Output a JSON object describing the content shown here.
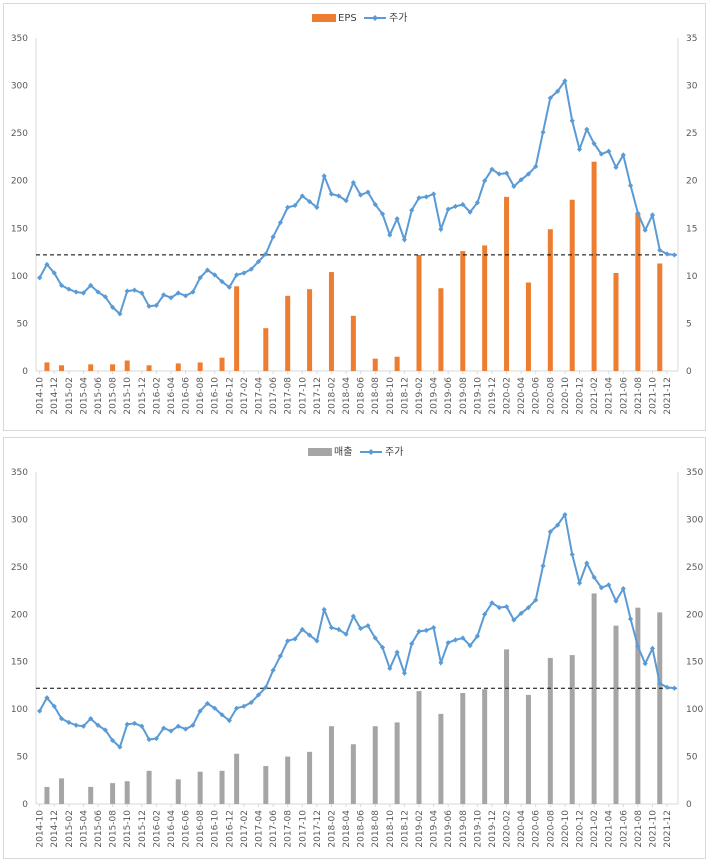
{
  "chart_data": [
    {
      "type": "bar+line",
      "x": [
        "2014-10",
        "2014-11",
        "2014-12",
        "2015-01",
        "2015-02",
        "2015-03",
        "2015-04",
        "2015-05",
        "2015-06",
        "2015-07",
        "2015-08",
        "2015-09",
        "2015-10",
        "2015-11",
        "2015-12",
        "2016-01",
        "2016-02",
        "2016-03",
        "2016-04",
        "2016-05",
        "2016-06",
        "2016-07",
        "2016-08",
        "2016-09",
        "2016-10",
        "2016-11",
        "2016-12",
        "2017-01",
        "2017-02",
        "2017-03",
        "2017-04",
        "2017-05",
        "2017-06",
        "2017-07",
        "2017-08",
        "2017-09",
        "2017-10",
        "2017-11",
        "2017-12",
        "2018-01",
        "2018-02",
        "2018-03",
        "2018-04",
        "2018-05",
        "2018-06",
        "2018-07",
        "2018-08",
        "2018-09",
        "2018-10",
        "2018-11",
        "2018-12",
        "2019-01",
        "2019-02",
        "2019-03",
        "2019-04",
        "2019-05",
        "2019-06",
        "2019-07",
        "2019-08",
        "2019-09",
        "2019-10",
        "2019-11",
        "2019-12",
        "2020-01",
        "2020-02",
        "2020-03",
        "2020-04",
        "2020-05",
        "2020-06",
        "2020-07",
        "2020-08",
        "2020-09",
        "2020-10",
        "2020-11",
        "2020-12",
        "2021-01",
        "2021-02",
        "2021-03",
        "2021-04",
        "2021-05",
        "2021-06",
        "2021-07",
        "2021-08",
        "2021-09",
        "2021-10",
        "2021-11",
        "2021-12",
        "2022-01"
      ],
      "x_tick_labels": [
        "2014-10",
        "2014-12",
        "2015-02",
        "2015-04",
        "2015-06",
        "2015-08",
        "2015-10",
        "2015-12",
        "2016-02",
        "2016-04",
        "2016-06",
        "2016-08",
        "2016-10",
        "2016-12",
        "2017-02",
        "2017-04",
        "2017-06",
        "2017-08",
        "2017-10",
        "2017-12",
        "2018-02",
        "2018-04",
        "2018-06",
        "2018-08",
        "2018-10",
        "2018-12",
        "2019-02",
        "2019-04",
        "2019-06",
        "2019-08",
        "2019-10",
        "2019-12",
        "2020-02",
        "2020-04",
        "2020-06",
        "2020-08",
        "2020-10",
        "2020-12",
        "2021-02",
        "2021-04",
        "2021-06",
        "2021-08",
        "2021-10",
        "2021-12"
      ],
      "left_axis": {
        "min": 0,
        "max": 350,
        "ticks": [
          "0",
          "50",
          "100",
          "150",
          "200",
          "250",
          "300",
          "350"
        ]
      },
      "right_axis": {
        "min": 0,
        "max": 35,
        "ticks": [
          "0",
          "5",
          "10",
          "15",
          "20",
          "25",
          "30",
          "35"
        ]
      },
      "reference_line": 122,
      "legend": {
        "position": "top",
        "bar_label": "EPS",
        "line_label": "주가"
      },
      "colors": {
        "bar": "#ED7D31",
        "line": "#5B9BD5",
        "grid_axis": "#d9d9d9",
        "reference": "#000000"
      },
      "bars": {
        "name": "EPS",
        "axis": "right",
        "points": [
          [
            "2014-11",
            0.9
          ],
          [
            "2015-01",
            0.6
          ],
          [
            "2015-05",
            0.7
          ],
          [
            "2015-08",
            0.7
          ],
          [
            "2015-10",
            1.1
          ],
          [
            "2016-01",
            0.6
          ],
          [
            "2016-05",
            0.8
          ],
          [
            "2016-08",
            0.9
          ],
          [
            "2016-11",
            1.4
          ],
          [
            "2017-01",
            8.9
          ],
          [
            "2017-05",
            4.5
          ],
          [
            "2017-08",
            7.9
          ],
          [
            "2017-11",
            8.6
          ],
          [
            "2018-02",
            10.4
          ],
          [
            "2018-05",
            5.8
          ],
          [
            "2018-08",
            1.3
          ],
          [
            "2018-11",
            1.5
          ],
          [
            "2019-02",
            12.2
          ],
          [
            "2019-05",
            8.7
          ],
          [
            "2019-08",
            12.6
          ],
          [
            "2019-11",
            13.2
          ],
          [
            "2020-02",
            18.3
          ],
          [
            "2020-05",
            9.3
          ],
          [
            "2020-08",
            14.9
          ],
          [
            "2020-11",
            18.0
          ],
          [
            "2021-02",
            22.0
          ],
          [
            "2021-05",
            10.3
          ],
          [
            "2021-08",
            16.6
          ],
          [
            "2021-11",
            11.3
          ]
        ]
      },
      "line": {
        "name": "주가",
        "axis": "left",
        "values": [
          98,
          112,
          103,
          90,
          86,
          83,
          82,
          90,
          83,
          78,
          67,
          60,
          84,
          85,
          82,
          68,
          69,
          80,
          77,
          82,
          79,
          83,
          98,
          106,
          101,
          94,
          88,
          101,
          103,
          107,
          115,
          123,
          141,
          156,
          172,
          174,
          184,
          178,
          172,
          205,
          186,
          184,
          179,
          198,
          185,
          188,
          175,
          165,
          143,
          160,
          138,
          169,
          182,
          183,
          186,
          149,
          170,
          173,
          175,
          167,
          177,
          200,
          212,
          207,
          208,
          194,
          201,
          207,
          215,
          251,
          287,
          294,
          305,
          263,
          233,
          254,
          239,
          228,
          231,
          214,
          227,
          195,
          166,
          148,
          164,
          127,
          123,
          122
        ]
      }
    },
    {
      "type": "bar+line",
      "x_tick_labels": [
        "2014-10",
        "2014-12",
        "2015-02",
        "2015-04",
        "2015-06",
        "2015-08",
        "2015-10",
        "2015-12",
        "2016-02",
        "2016-04",
        "2016-06",
        "2016-08",
        "2016-10",
        "2016-12",
        "2017-02",
        "2017-04",
        "2017-06",
        "2017-08",
        "2017-10",
        "2017-12",
        "2018-02",
        "2018-04",
        "2018-06",
        "2018-08",
        "2018-10",
        "2018-12",
        "2019-02",
        "2019-04",
        "2019-06",
        "2019-08",
        "2019-10",
        "2019-12",
        "2020-02",
        "2020-04",
        "2020-06",
        "2020-08",
        "2020-10",
        "2020-12",
        "2021-02",
        "2021-04",
        "2021-06",
        "2021-08",
        "2021-10",
        "2021-12"
      ],
      "left_axis": {
        "min": 0,
        "max": 350,
        "ticks": [
          "0",
          "50",
          "100",
          "150",
          "200",
          "250",
          "300",
          "350"
        ]
      },
      "right_axis": {
        "min": 0,
        "max": 350,
        "ticks": [
          "0",
          "50",
          "100",
          "150",
          "200",
          "250",
          "300",
          "350"
        ]
      },
      "reference_line": 122,
      "legend": {
        "position": "top",
        "bar_label": "매출",
        "line_label": "주가"
      },
      "colors": {
        "bar": "#A5A5A5",
        "line": "#5B9BD5",
        "grid_axis": "#d9d9d9",
        "reference": "#000000"
      },
      "bars": {
        "name": "매출",
        "axis": "right",
        "points": [
          [
            "2014-11",
            18
          ],
          [
            "2015-01",
            27
          ],
          [
            "2015-05",
            18
          ],
          [
            "2015-08",
            22
          ],
          [
            "2015-10",
            24
          ],
          [
            "2016-01",
            35
          ],
          [
            "2016-05",
            26
          ],
          [
            "2016-08",
            34
          ],
          [
            "2016-11",
            35
          ],
          [
            "2017-01",
            53
          ],
          [
            "2017-05",
            40
          ],
          [
            "2017-08",
            50
          ],
          [
            "2017-11",
            55
          ],
          [
            "2018-02",
            82
          ],
          [
            "2018-05",
            63
          ],
          [
            "2018-08",
            82
          ],
          [
            "2018-11",
            86
          ],
          [
            "2019-02",
            119
          ],
          [
            "2019-05",
            95
          ],
          [
            "2019-08",
            117
          ],
          [
            "2019-11",
            121
          ],
          [
            "2020-02",
            163
          ],
          [
            "2020-05",
            115
          ],
          [
            "2020-08",
            154
          ],
          [
            "2020-11",
            157
          ],
          [
            "2021-02",
            222
          ],
          [
            "2021-05",
            188
          ],
          [
            "2021-08",
            207
          ],
          [
            "2021-11",
            202
          ]
        ]
      },
      "line": {
        "name": "주가",
        "axis": "left",
        "values": [
          98,
          112,
          103,
          90,
          86,
          83,
          82,
          90,
          83,
          78,
          67,
          60,
          84,
          85,
          82,
          68,
          69,
          80,
          77,
          82,
          79,
          83,
          98,
          106,
          101,
          94,
          88,
          101,
          103,
          107,
          115,
          123,
          141,
          156,
          172,
          174,
          184,
          178,
          172,
          205,
          186,
          184,
          179,
          198,
          185,
          188,
          175,
          165,
          143,
          160,
          138,
          169,
          182,
          183,
          186,
          149,
          170,
          173,
          175,
          167,
          177,
          200,
          212,
          207,
          208,
          194,
          201,
          207,
          215,
          251,
          287,
          294,
          305,
          263,
          233,
          254,
          239,
          228,
          231,
          214,
          227,
          195,
          166,
          148,
          164,
          127,
          123,
          122
        ]
      }
    }
  ]
}
